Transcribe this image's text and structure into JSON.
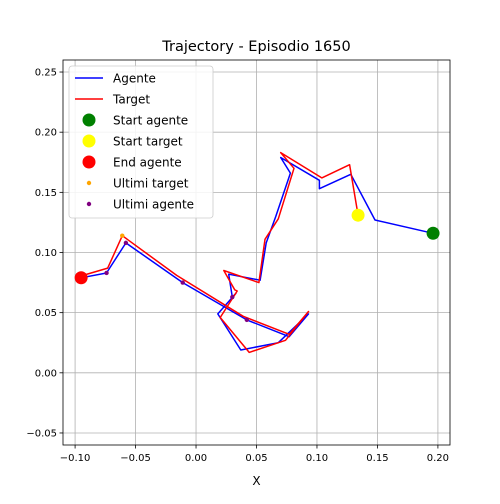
{
  "chart_data": {
    "type": "line",
    "title": "Trajectory - Episodio 1650",
    "xlabel": "X",
    "ylabel": "",
    "xlim": [
      -0.11,
      0.21
    ],
    "ylim": [
      -0.06,
      0.26
    ],
    "xticks": [
      -0.1,
      -0.05,
      0.0,
      0.05,
      0.1,
      0.15,
      0.2
    ],
    "yticks": [
      -0.05,
      0.0,
      0.05,
      0.1,
      0.15,
      0.2,
      0.25
    ],
    "grid": true,
    "legend_position": "top-left",
    "legend": [
      {
        "label": "Agente",
        "kind": "line",
        "color": "#0000ff"
      },
      {
        "label": "Target",
        "kind": "line",
        "color": "#ff0000"
      },
      {
        "label": "Start agente",
        "kind": "marker-large",
        "color": "#008000"
      },
      {
        "label": "Start target",
        "kind": "marker-large",
        "color": "#ffff00"
      },
      {
        "label": "End agente",
        "kind": "marker-large",
        "color": "#ff0000"
      },
      {
        "label": "Ultimi target",
        "kind": "marker-small",
        "color": "#ffa500"
      },
      {
        "label": "Ultimi agente",
        "kind": "marker-small",
        "color": "#800080"
      }
    ],
    "series": [
      {
        "name": "Agente",
        "color": "#0000ff",
        "points": [
          [
            0.196,
            0.116
          ],
          [
            0.148,
            0.127
          ],
          [
            0.128,
            0.165
          ],
          [
            0.102,
            0.153
          ],
          [
            0.102,
            0.16
          ],
          [
            0.07,
            0.179
          ],
          [
            0.078,
            0.166
          ],
          [
            0.066,
            0.13
          ],
          [
            0.058,
            0.108
          ],
          [
            0.053,
            0.077
          ],
          [
            0.027,
            0.082
          ],
          [
            0.03,
            0.063
          ],
          [
            0.033,
            0.066
          ],
          [
            0.018,
            0.049
          ],
          [
            0.037,
            0.019
          ],
          [
            0.068,
            0.025
          ],
          [
            0.093,
            0.049
          ],
          [
            0.077,
            0.03
          ],
          [
            0.042,
            0.044
          ],
          [
            -0.011,
            0.075
          ],
          [
            -0.058,
            0.108
          ],
          [
            -0.074,
            0.083
          ],
          [
            -0.095,
            0.079
          ]
        ]
      },
      {
        "name": "Target",
        "color": "#ff0000",
        "points": [
          [
            0.134,
            0.131
          ],
          [
            0.127,
            0.173
          ],
          [
            0.104,
            0.162
          ],
          [
            0.07,
            0.183
          ],
          [
            0.081,
            0.17
          ],
          [
            0.068,
            0.128
          ],
          [
            0.057,
            0.111
          ],
          [
            0.052,
            0.075
          ],
          [
            0.023,
            0.085
          ],
          [
            0.032,
            0.069
          ],
          [
            0.034,
            0.068
          ],
          [
            0.02,
            0.046
          ],
          [
            0.044,
            0.017
          ],
          [
            0.074,
            0.027
          ],
          [
            0.093,
            0.051
          ],
          [
            0.077,
            0.032
          ],
          [
            0.039,
            0.047
          ],
          [
            -0.016,
            0.081
          ],
          [
            -0.061,
            0.114
          ],
          [
            -0.073,
            0.087
          ],
          [
            -0.097,
            0.08
          ]
        ]
      }
    ],
    "markers": {
      "start_agente": {
        "x": 0.196,
        "y": 0.116,
        "color": "#008000"
      },
      "start_target": {
        "x": 0.134,
        "y": 0.131,
        "color": "#ffff00"
      },
      "end_agente": {
        "x": -0.095,
        "y": 0.079,
        "color": "#ff0000"
      },
      "ultimi_target": {
        "color": "#ffa500",
        "points": [
          [
            -0.061,
            0.114
          ],
          [
            -0.097,
            0.08
          ]
        ]
      },
      "ultimi_agente": {
        "color": "#800080",
        "points": [
          [
            0.042,
            0.044
          ],
          [
            -0.011,
            0.075
          ],
          [
            -0.058,
            0.108
          ],
          [
            -0.074,
            0.083
          ],
          [
            0.03,
            0.063
          ]
        ]
      }
    }
  }
}
